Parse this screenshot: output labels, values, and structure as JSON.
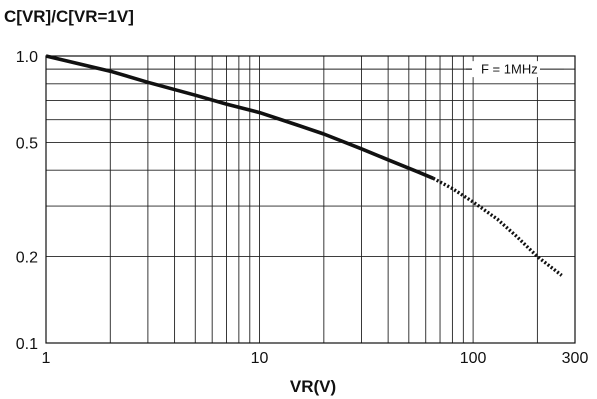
{
  "chart_data": {
    "type": "line",
    "title": "",
    "xlabel": "VR(V)",
    "ylabel": "C[VR]/C[VR=1V]",
    "xscale": "log",
    "yscale": "log",
    "xlim": [
      1,
      300
    ],
    "ylim": [
      0.1,
      1.0
    ],
    "grid": true,
    "x_tick_labels": [
      "1",
      "10",
      "100",
      "300"
    ],
    "y_tick_labels": [
      "0.1",
      "0.2",
      "0.5",
      "1.0"
    ],
    "annotation": "F = 1MHz",
    "series": [
      {
        "style": "solid",
        "x": [
          1,
          2,
          3,
          5,
          7,
          10,
          15,
          20,
          30,
          40,
          55,
          65
        ],
        "y": [
          1.0,
          0.885,
          0.81,
          0.73,
          0.68,
          0.635,
          0.575,
          0.535,
          0.475,
          0.435,
          0.395,
          0.375
        ]
      },
      {
        "style": "dotted",
        "x": [
          65,
          80,
          100,
          130,
          160,
          200,
          260
        ],
        "y": [
          0.375,
          0.345,
          0.31,
          0.27,
          0.235,
          0.2,
          0.172
        ]
      }
    ]
  }
}
